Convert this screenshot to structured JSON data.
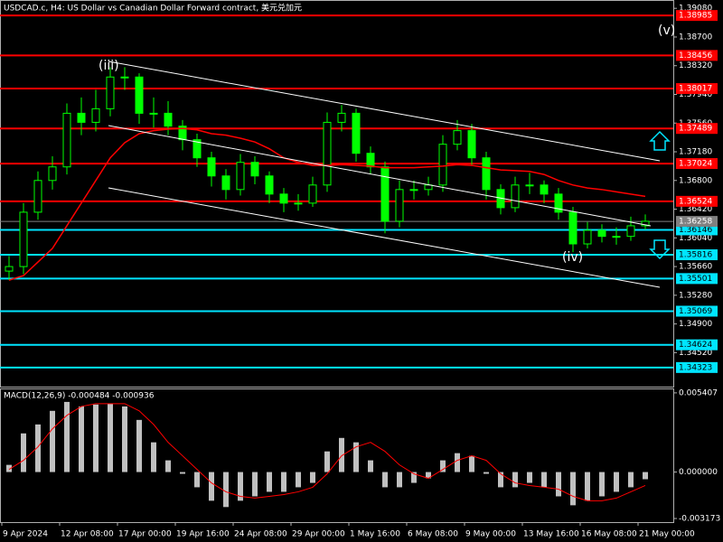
{
  "chart_data": [
    {
      "type": "candlestick",
      "title": "USDCAD.c, H4:  US Dollar vs Canadian Dollar Forward contract, 美元兑加元",
      "categories": [
        "9 Apr 2024",
        null,
        null,
        null,
        "12 Apr 08:00",
        null,
        null,
        null,
        "17 Apr 00:00",
        null,
        null,
        null,
        "19 Apr 16:00",
        null,
        null,
        null,
        "24 Apr 08:00",
        null,
        null,
        null,
        "29 Apr 00:00",
        null,
        null,
        null,
        "1 May 16:00",
        null,
        null,
        null,
        "6 May 08:00",
        null,
        null,
        null,
        "9 May 00:00",
        null,
        null,
        null,
        "13 May 16:00",
        null,
        null,
        null,
        "16 May 08:00",
        null,
        null,
        null,
        "21 May 00:00"
      ],
      "open": [
        1.356,
        1.3566,
        1.3638,
        1.368,
        1.3698,
        1.3769,
        1.3757,
        1.3775,
        1.3817,
        1.3817,
        1.3769,
        1.3769,
        1.3752,
        1.3734,
        1.371,
        1.3686,
        1.3668,
        1.3704,
        1.3686,
        1.3662,
        1.365,
        1.365,
        1.3674,
        1.3757,
        1.3769,
        1.3716,
        1.3698,
        1.3626,
        1.3668,
        1.3668,
        1.3674,
        1.3728,
        1.3746,
        1.371,
        1.3668,
        1.3644,
        1.3674,
        1.3674,
        1.3662,
        1.3638,
        1.3596,
        1.3614,
        1.3606,
        1.3606,
        1.362
      ],
      "high": [
        1.358,
        1.365,
        1.3692,
        1.3712,
        1.3782,
        1.379,
        1.38,
        1.383,
        1.383,
        1.3822,
        1.379,
        1.3785,
        1.376,
        1.3742,
        1.3718,
        1.3695,
        1.3715,
        1.3712,
        1.3692,
        1.367,
        1.3662,
        1.3685,
        1.377,
        1.378,
        1.3775,
        1.3725,
        1.3705,
        1.368,
        1.368,
        1.3685,
        1.374,
        1.376,
        1.3755,
        1.3718,
        1.3675,
        1.3685,
        1.369,
        1.368,
        1.367,
        1.3645,
        1.3625,
        1.3622,
        1.3618,
        1.3632,
        1.3635
      ],
      "low": [
        1.3548,
        1.3556,
        1.3628,
        1.3668,
        1.3688,
        1.374,
        1.3745,
        1.3765,
        1.38,
        1.3755,
        1.375,
        1.374,
        1.372,
        1.3698,
        1.3672,
        1.3655,
        1.366,
        1.3675,
        1.365,
        1.3638,
        1.364,
        1.3645,
        1.3665,
        1.3745,
        1.3705,
        1.3688,
        1.361,
        1.3618,
        1.3655,
        1.366,
        1.3665,
        1.372,
        1.37,
        1.3655,
        1.3635,
        1.3638,
        1.3662,
        1.365,
        1.3628,
        1.3585,
        1.359,
        1.3598,
        1.3595,
        1.36,
        1.3615
      ],
      "close": [
        1.3566,
        1.3638,
        1.368,
        1.3698,
        1.3769,
        1.3757,
        1.3775,
        1.3817,
        1.3817,
        1.3769,
        1.3769,
        1.3752,
        1.3734,
        1.371,
        1.3686,
        1.3668,
        1.3704,
        1.3686,
        1.3662,
        1.365,
        1.365,
        1.3674,
        1.3757,
        1.3769,
        1.3716,
        1.3698,
        1.3626,
        1.3668,
        1.3668,
        1.3674,
        1.3728,
        1.3746,
        1.371,
        1.3668,
        1.3644,
        1.3674,
        1.3674,
        1.3662,
        1.3638,
        1.3596,
        1.3614,
        1.3606,
        1.3606,
        1.362,
        1.3626
      ],
      "candle_color": "#00ff00",
      "ma": {
        "color": "#ff0000",
        "values": [
          1.3548,
          1.3554,
          1.3572,
          1.359,
          1.362,
          1.365,
          1.368,
          1.371,
          1.373,
          1.3742,
          1.3746,
          1.3748,
          1.3749,
          1.3747,
          1.3742,
          1.374,
          1.3736,
          1.3731,
          1.3722,
          1.371,
          1.3704,
          1.37,
          1.37,
          1.3701,
          1.37,
          1.3699,
          1.3697,
          1.3697,
          1.3697,
          1.3698,
          1.3699,
          1.3701,
          1.37,
          1.3697,
          1.3694,
          1.3693,
          1.3692,
          1.3688,
          1.368,
          1.3674,
          1.367,
          1.3668,
          1.3665,
          1.3662,
          1.3659
        ]
      },
      "levels": [
        {
          "color": "#ff0000",
          "text_color": "#ffffff",
          "values": [
            1.38985,
            1.38456,
            1.38017,
            1.37489,
            1.37024,
            1.36524
          ]
        },
        {
          "color": "#00e5ff",
          "text_color": "#000000",
          "values": [
            1.36146,
            1.35816,
            1.35501,
            1.35069,
            1.34624,
            1.34323
          ]
        }
      ],
      "current_price": 1.36258,
      "ylim": [
        1.3407,
        1.3919
      ],
      "yticks": [
        {
          "value": 1.3908,
          "label": "1.39080"
        },
        {
          "value": 1.387,
          "label": "1.38700"
        },
        {
          "value": 1.3832,
          "label": "1.38320"
        },
        {
          "value": 1.3794,
          "label": "1.37940"
        },
        {
          "value": 1.3756,
          "label": "1.37560"
        },
        {
          "value": 1.3718,
          "label": "1.37180"
        },
        {
          "value": 1.368,
          "label": "1.36800"
        },
        {
          "value": 1.3642,
          "label": "1.36420"
        },
        {
          "value": 1.3604,
          "label": "1.36040"
        },
        {
          "value": 1.3566,
          "label": "1.35660"
        },
        {
          "value": 1.3528,
          "label": "1.35280"
        },
        {
          "value": 1.349,
          "label": "1.34900"
        },
        {
          "value": 1.3452,
          "label": "1.34520"
        }
      ],
      "annotations": [
        "(iii)",
        "(iv)",
        "(v)"
      ]
    },
    {
      "type": "macd",
      "title": "MACD(12,26,9) -0.000484 -0.000936",
      "histogram": {
        "color": "#c0c0c0",
        "values": [
          0.00049,
          0.00264,
          0.00325,
          0.00418,
          0.00479,
          0.00448,
          0.00461,
          0.00467,
          0.00448,
          0.00356,
          0.00203,
          0.0008,
          -0.00012,
          -0.00104,
          -0.00196,
          -0.00239,
          -0.00196,
          -0.00166,
          -0.00135,
          -0.00135,
          -0.00104,
          -0.00074,
          0.00141,
          0.00233,
          0.00203,
          0.0008,
          -0.00104,
          -0.00104,
          -0.00074,
          -0.00043,
          0.0008,
          0.00129,
          0.00111,
          -0.00012,
          -0.00104,
          -0.00104,
          -0.00074,
          -0.00104,
          -0.00166,
          -0.00227,
          -0.00196,
          -0.00166,
          -0.00135,
          -0.00104,
          -0.00049
        ]
      },
      "signal": {
        "color": "#ff0000",
        "values": [
          0.00018,
          0.0008,
          0.00172,
          0.00295,
          0.00387,
          0.00448,
          0.00467,
          0.00467,
          0.00467,
          0.00418,
          0.00325,
          0.00203,
          0.00111,
          0.00018,
          -0.00074,
          -0.00135,
          -0.00166,
          -0.00178,
          -0.00166,
          -0.00154,
          -0.00135,
          -0.00104,
          -0.00012,
          0.00111,
          0.00172,
          0.00203,
          0.00141,
          0.00049,
          -0.00012,
          -0.00043,
          0.00018,
          0.0008,
          0.00111,
          0.0008,
          -0.00012,
          -0.00074,
          -0.00092,
          -0.00104,
          -0.00117,
          -0.00166,
          -0.00196,
          -0.00196,
          -0.00178,
          -0.00135,
          -0.00092
        ]
      },
      "ylim": [
        -0.00342,
        0.00571
      ],
      "yticks": [
        0.005407,
        {
          "value": 0,
          "label": "0.000000"
        },
        -0.003173
      ]
    }
  ]
}
